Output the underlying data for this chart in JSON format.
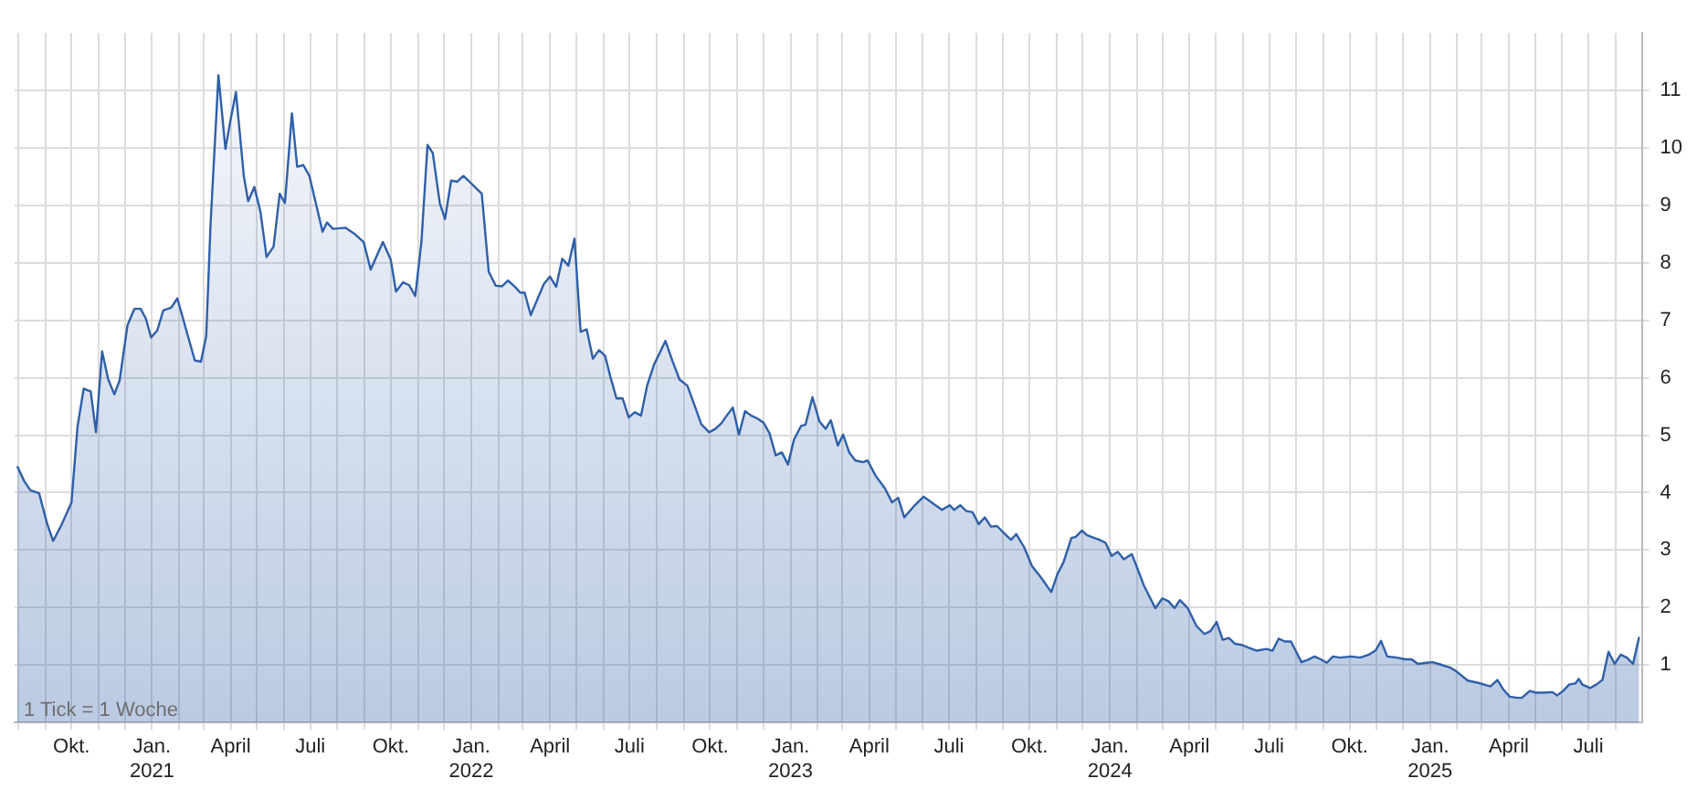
{
  "chart_data": {
    "type": "area",
    "x": [
      "2020-07-31",
      "2020-08-08",
      "2020-08-15",
      "2020-08-25",
      "2020-09-03",
      "2020-09-10",
      "2020-09-19",
      "2020-10-01",
      "2020-10-08",
      "2020-10-15",
      "2020-10-23",
      "2020-10-29",
      "2020-11-05",
      "2020-11-12",
      "2020-11-19",
      "2020-11-25",
      "2020-12-04",
      "2020-12-12",
      "2020-12-19",
      "2020-12-25",
      "2020-12-31",
      "2021-01-07",
      "2021-01-14",
      "2021-01-23",
      "2021-01-30",
      "2021-02-04",
      "2021-02-19",
      "2021-02-26",
      "2021-03-04",
      "2021-03-09",
      "2021-03-18",
      "2021-03-26",
      "2021-04-01",
      "2021-04-07",
      "2021-04-16",
      "2021-04-21",
      "2021-04-28",
      "2021-05-05",
      "2021-05-12",
      "2021-05-20",
      "2021-05-27",
      "2021-06-02",
      "2021-06-10",
      "2021-06-16",
      "2021-06-23",
      "2021-06-30",
      "2021-07-15",
      "2021-07-20",
      "2021-07-27",
      "2021-08-10",
      "2021-08-20",
      "2021-08-31",
      "2021-09-08",
      "2021-09-22",
      "2021-10-01",
      "2021-10-07",
      "2021-10-15",
      "2021-10-22",
      "2021-10-29",
      "2021-11-05",
      "2021-11-12",
      "2021-11-18",
      "2021-11-26",
      "2021-12-02",
      "2021-12-09",
      "2021-12-16",
      "2021-12-23",
      "2021-12-30",
      "2022-01-13",
      "2022-01-21",
      "2022-01-29",
      "2022-02-05",
      "2022-02-12",
      "2022-02-20",
      "2022-02-26",
      "2022-03-03",
      "2022-03-10",
      "2022-03-18",
      "2022-03-25",
      "2022-04-01",
      "2022-04-08",
      "2022-04-15",
      "2022-04-22",
      "2022-04-29",
      "2022-05-06",
      "2022-05-13",
      "2022-05-20",
      "2022-05-27",
      "2022-06-03",
      "2022-06-09",
      "2022-06-16",
      "2022-06-23",
      "2022-06-30",
      "2022-07-07",
      "2022-07-14",
      "2022-07-21",
      "2022-07-29",
      "2022-08-11",
      "2022-08-19",
      "2022-08-27",
      "2022-09-05",
      "2022-09-12",
      "2022-09-21",
      "2022-09-30",
      "2022-10-07",
      "2022-10-14",
      "2022-10-20",
      "2022-10-27",
      "2022-11-03",
      "2022-11-10",
      "2022-11-17",
      "2022-11-24",
      "2022-12-01",
      "2022-12-08",
      "2022-12-15",
      "2022-12-22",
      "2022-12-29",
      "2023-01-05",
      "2023-01-13",
      "2023-01-18",
      "2023-01-26",
      "2023-02-03",
      "2023-02-10",
      "2023-02-16",
      "2023-02-24",
      "2023-03-02",
      "2023-03-09",
      "2023-03-16",
      "2023-03-25",
      "2023-03-30",
      "2023-04-08",
      "2023-04-19",
      "2023-04-27",
      "2023-05-04",
      "2023-05-11",
      "2023-05-23",
      "2023-06-02",
      "2023-06-13",
      "2023-06-23",
      "2023-07-02",
      "2023-07-07",
      "2023-07-14",
      "2023-07-21",
      "2023-07-28",
      "2023-08-04",
      "2023-08-11",
      "2023-08-18",
      "2023-08-25",
      "2023-09-03",
      "2023-09-10",
      "2023-09-16",
      "2023-09-25",
      "2023-10-04",
      "2023-10-14",
      "2023-10-26",
      "2023-11-02",
      "2023-11-09",
      "2023-11-18",
      "2023-11-23",
      "2023-11-30",
      "2023-12-06",
      "2023-12-20",
      "2023-12-27",
      "2024-01-03",
      "2024-01-10",
      "2024-01-17",
      "2024-01-26",
      "2024-01-31",
      "2024-02-09",
      "2024-02-22",
      "2024-03-01",
      "2024-03-08",
      "2024-03-15",
      "2024-03-21",
      "2024-03-30",
      "2024-04-09",
      "2024-04-18",
      "2024-04-25",
      "2024-05-02",
      "2024-05-09",
      "2024-05-16",
      "2024-05-23",
      "2024-05-31",
      "2024-06-08",
      "2024-06-17",
      "2024-06-28",
      "2024-07-05",
      "2024-07-12",
      "2024-07-19",
      "2024-07-26",
      "2024-08-07",
      "2024-08-14",
      "2024-08-22",
      "2024-08-29",
      "2024-09-05",
      "2024-09-12",
      "2024-09-20",
      "2024-10-03",
      "2024-10-13",
      "2024-10-23",
      "2024-10-31",
      "2024-11-06",
      "2024-11-13",
      "2024-11-24",
      "2024-12-04",
      "2024-12-11",
      "2024-12-18",
      "2024-12-28",
      "2025-01-04",
      "2025-01-15",
      "2025-01-25",
      "2025-02-01",
      "2025-02-13",
      "2025-02-25",
      "2025-03-11",
      "2025-03-19",
      "2025-03-26",
      "2025-04-02",
      "2025-04-11",
      "2025-04-16",
      "2025-04-25",
      "2025-05-02",
      "2025-05-12",
      "2025-05-21",
      "2025-05-26",
      "2025-06-02",
      "2025-06-09",
      "2025-06-16",
      "2025-06-20",
      "2025-06-24",
      "2025-07-03",
      "2025-07-10",
      "2025-07-17",
      "2025-07-24",
      "2025-07-31",
      "2025-08-07",
      "2025-08-14",
      "2025-08-21",
      "2025-08-28"
    ],
    "series": [
      {
        "color": "#2e5fa8",
        "values": [
          4.46,
          4.2,
          4.04,
          3.99,
          3.47,
          3.16,
          3.42,
          3.83,
          5.16,
          5.81,
          5.76,
          5.05,
          6.46,
          5.97,
          5.71,
          5.95,
          6.91,
          7.2,
          7.2,
          7.03,
          6.7,
          6.82,
          7.17,
          7.22,
          7.38,
          7.11,
          6.3,
          6.28,
          6.72,
          8.68,
          11.26,
          9.98,
          10.5,
          10.97,
          9.51,
          9.07,
          9.32,
          8.89,
          8.1,
          8.28,
          9.2,
          9.04,
          10.6,
          9.67,
          9.7,
          9.51,
          8.54,
          8.7,
          8.59,
          8.61,
          8.51,
          8.36,
          7.88,
          8.36,
          8.05,
          7.5,
          7.66,
          7.61,
          7.42,
          8.36,
          10.05,
          9.91,
          9.04,
          8.76,
          9.43,
          9.41,
          9.51,
          9.41,
          9.2,
          7.84,
          7.6,
          7.59,
          7.69,
          7.58,
          7.48,
          7.48,
          7.09,
          7.38,
          7.63,
          7.76,
          7.58,
          8.07,
          7.95,
          8.42,
          6.8,
          6.84,
          6.33,
          6.48,
          6.38,
          6.02,
          5.64,
          5.64,
          5.31,
          5.4,
          5.34,
          5.86,
          6.23,
          6.64,
          6.29,
          5.97,
          5.86,
          5.57,
          5.19,
          5.05,
          5.11,
          5.21,
          5.34,
          5.48,
          5.01,
          5.42,
          5.34,
          5.29,
          5.22,
          5.03,
          4.65,
          4.7,
          4.49,
          4.93,
          5.16,
          5.18,
          5.66,
          5.24,
          5.11,
          5.26,
          4.82,
          5.01,
          4.7,
          4.56,
          4.53,
          4.56,
          4.3,
          4.07,
          3.83,
          3.91,
          3.57,
          3.78,
          3.93,
          3.81,
          3.7,
          3.78,
          3.7,
          3.78,
          3.68,
          3.66,
          3.45,
          3.57,
          3.41,
          3.42,
          3.28,
          3.18,
          3.28,
          3.05,
          2.72,
          2.53,
          2.27,
          2.58,
          2.79,
          3.21,
          3.23,
          3.34,
          3.26,
          3.18,
          3.13,
          2.9,
          2.97,
          2.84,
          2.93,
          2.74,
          2.38,
          1.99,
          2.16,
          2.11,
          1.99,
          2.13,
          1.99,
          1.68,
          1.54,
          1.59,
          1.75,
          1.44,
          1.47,
          1.37,
          1.35,
          1.3,
          1.25,
          1.28,
          1.25,
          1.46,
          1.41,
          1.41,
          1.05,
          1.09,
          1.15,
          1.1,
          1.04,
          1.15,
          1.13,
          1.15,
          1.13,
          1.18,
          1.26,
          1.42,
          1.15,
          1.13,
          1.1,
          1.1,
          1.02,
          1.04,
          1.05,
          1.0,
          0.95,
          0.88,
          0.73,
          0.69,
          0.63,
          0.74,
          0.57,
          0.45,
          0.43,
          0.43,
          0.55,
          0.52,
          0.52,
          0.53,
          0.47,
          0.55,
          0.66,
          0.68,
          0.76,
          0.66,
          0.6,
          0.66,
          0.74,
          1.23,
          1.02,
          1.18,
          1.13,
          1.02,
          1.49
        ]
      }
    ],
    "xlim": [
      "2020-07-28",
      "2025-08-31"
    ],
    "xticks": [
      {
        "value": "2020-08-01",
        "label": null
      },
      {
        "value": "2020-09-01",
        "label": null
      },
      {
        "value": "2020-10-01",
        "label": "Okt."
      },
      {
        "value": "2020-11-01",
        "label": null
      },
      {
        "value": "2020-12-01",
        "label": null
      },
      {
        "value": "2021-01-01",
        "label": "Jan.\n2021"
      },
      {
        "value": "2021-02-01",
        "label": null
      },
      {
        "value": "2021-03-01",
        "label": null
      },
      {
        "value": "2021-04-01",
        "label": "April"
      },
      {
        "value": "2021-05-01",
        "label": null
      },
      {
        "value": "2021-06-01",
        "label": null
      },
      {
        "value": "2021-07-01",
        "label": "Juli"
      },
      {
        "value": "2021-08-01",
        "label": null
      },
      {
        "value": "2021-09-01",
        "label": null
      },
      {
        "value": "2021-10-01",
        "label": "Okt."
      },
      {
        "value": "2021-11-01",
        "label": null
      },
      {
        "value": "2021-12-01",
        "label": null
      },
      {
        "value": "2022-01-01",
        "label": "Jan.\n2022"
      },
      {
        "value": "2022-02-01",
        "label": null
      },
      {
        "value": "2022-03-01",
        "label": null
      },
      {
        "value": "2022-04-01",
        "label": "April"
      },
      {
        "value": "2022-05-01",
        "label": null
      },
      {
        "value": "2022-06-01",
        "label": null
      },
      {
        "value": "2022-07-01",
        "label": "Juli"
      },
      {
        "value": "2022-08-01",
        "label": null
      },
      {
        "value": "2022-09-01",
        "label": null
      },
      {
        "value": "2022-10-01",
        "label": "Okt."
      },
      {
        "value": "2022-11-01",
        "label": null
      },
      {
        "value": "2022-12-01",
        "label": null
      },
      {
        "value": "2023-01-01",
        "label": "Jan.\n2023"
      },
      {
        "value": "2023-02-01",
        "label": null
      },
      {
        "value": "2023-03-01",
        "label": null
      },
      {
        "value": "2023-04-01",
        "label": "April"
      },
      {
        "value": "2023-05-01",
        "label": null
      },
      {
        "value": "2023-06-01",
        "label": null
      },
      {
        "value": "2023-07-01",
        "label": "Juli"
      },
      {
        "value": "2023-08-01",
        "label": null
      },
      {
        "value": "2023-09-01",
        "label": null
      },
      {
        "value": "2023-10-01",
        "label": "Okt."
      },
      {
        "value": "2023-11-01",
        "label": null
      },
      {
        "value": "2023-12-01",
        "label": null
      },
      {
        "value": "2024-01-01",
        "label": "Jan.\n2024"
      },
      {
        "value": "2024-02-01",
        "label": null
      },
      {
        "value": "2024-03-01",
        "label": null
      },
      {
        "value": "2024-04-01",
        "label": "April"
      },
      {
        "value": "2024-05-01",
        "label": null
      },
      {
        "value": "2024-06-01",
        "label": null
      },
      {
        "value": "2024-07-01",
        "label": "Juli"
      },
      {
        "value": "2024-08-01",
        "label": null
      },
      {
        "value": "2024-09-01",
        "label": null
      },
      {
        "value": "2024-10-01",
        "label": "Okt."
      },
      {
        "value": "2024-11-01",
        "label": null
      },
      {
        "value": "2024-12-01",
        "label": null
      },
      {
        "value": "2025-01-01",
        "label": "Jan.\n2025"
      },
      {
        "value": "2025-02-01",
        "label": null
      },
      {
        "value": "2025-03-01",
        "label": null
      },
      {
        "value": "2025-04-01",
        "label": "April"
      },
      {
        "value": "2025-05-01",
        "label": null
      },
      {
        "value": "2025-06-01",
        "label": null
      },
      {
        "value": "2025-07-01",
        "label": "Juli"
      },
      {
        "value": "2025-08-01",
        "label": null
      }
    ],
    "ylim": [
      0,
      12
    ],
    "yticks": [
      1,
      2,
      3,
      4,
      5,
      6,
      7,
      8,
      9,
      10,
      11
    ],
    "grid": true,
    "annotations": [
      "1 Tick = 1 Woche"
    ]
  }
}
